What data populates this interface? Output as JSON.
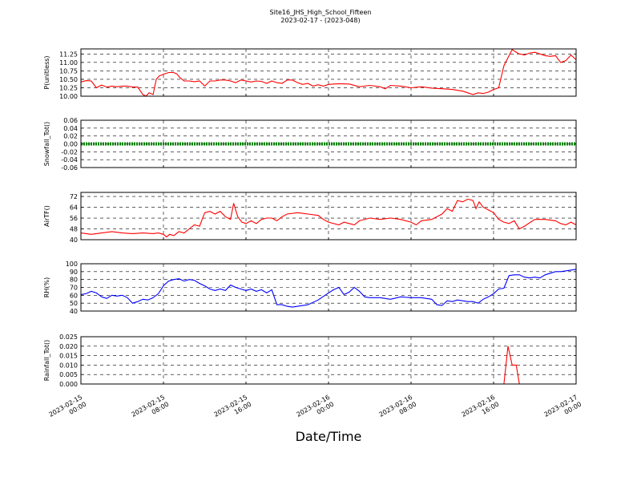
{
  "chart_data": {
    "title": "Site16_JHS_High_School_Fifteen",
    "subtitle": "2023-02-17 - (2023-048)",
    "xlabel": "Date/Time",
    "x_ticks": [
      {
        "label_date": "2023-02-15",
        "label_time": "00:00",
        "hours": 0
      },
      {
        "label_date": "2023-02-15",
        "label_time": "08:00",
        "hours": 8
      },
      {
        "label_date": "2023-02-15",
        "label_time": "16:00",
        "hours": 16
      },
      {
        "label_date": "2023-02-16",
        "label_time": "00:00",
        "hours": 24
      },
      {
        "label_date": "2023-02-16",
        "label_time": "08:00",
        "hours": 32
      },
      {
        "label_date": "2023-02-16",
        "label_time": "16:00",
        "hours": 40
      },
      {
        "label_date": "2023-02-17",
        "label_time": "00:00",
        "hours": 48
      }
    ],
    "xlim_hours": [
      0,
      48
    ],
    "grid": true,
    "panels": [
      {
        "type": "line",
        "ylabel": "P(unitless)",
        "ylim": [
          10.0,
          11.4
        ],
        "yticks": [
          "10.00",
          "10.25",
          "10.50",
          "10.75",
          "11.00",
          "11.25"
        ],
        "ytick_values": [
          10.0,
          10.25,
          10.5,
          10.75,
          11.0,
          11.25
        ],
        "color": "#ff0000",
        "points": [
          [
            0,
            10.42
          ],
          [
            0.5,
            10.46
          ],
          [
            1,
            10.45
          ],
          [
            1.5,
            10.25
          ],
          [
            2,
            10.33
          ],
          [
            2.5,
            10.27
          ],
          [
            3,
            10.3
          ],
          [
            3.5,
            10.28
          ],
          [
            4,
            10.3
          ],
          [
            4.5,
            10.3
          ],
          [
            5,
            10.27
          ],
          [
            5.5,
            10.27
          ],
          [
            6,
            10.05
          ],
          [
            6.3,
            10.0
          ],
          [
            6.6,
            10.1
          ],
          [
            7,
            10.05
          ],
          [
            7.3,
            10.5
          ],
          [
            7.6,
            10.6
          ],
          [
            8,
            10.65
          ],
          [
            8.5,
            10.7
          ],
          [
            9,
            10.7
          ],
          [
            9.3,
            10.66
          ],
          [
            9.6,
            10.55
          ],
          [
            10,
            10.45
          ],
          [
            10.5,
            10.45
          ],
          [
            11,
            10.43
          ],
          [
            11.5,
            10.45
          ],
          [
            12,
            10.3
          ],
          [
            12.5,
            10.45
          ],
          [
            13,
            10.45
          ],
          [
            13.5,
            10.48
          ],
          [
            14,
            10.48
          ],
          [
            14.5,
            10.45
          ],
          [
            15,
            10.4
          ],
          [
            15.5,
            10.48
          ],
          [
            16,
            10.45
          ],
          [
            16.5,
            10.42
          ],
          [
            17,
            10.45
          ],
          [
            17.5,
            10.44
          ],
          [
            18,
            10.38
          ],
          [
            18.5,
            10.45
          ],
          [
            19,
            10.4
          ],
          [
            19.5,
            10.38
          ],
          [
            20,
            10.48
          ],
          [
            20.5,
            10.48
          ],
          [
            21,
            10.4
          ],
          [
            21.5,
            10.35
          ],
          [
            22,
            10.38
          ],
          [
            22.5,
            10.3
          ],
          [
            23,
            10.34
          ],
          [
            23.5,
            10.3
          ],
          [
            24,
            10.35
          ],
          [
            25,
            10.37
          ],
          [
            26,
            10.36
          ],
          [
            27,
            10.28
          ],
          [
            28,
            10.32
          ],
          [
            29,
            10.28
          ],
          [
            29.5,
            10.22
          ],
          [
            30,
            10.32
          ],
          [
            31,
            10.3
          ],
          [
            32,
            10.25
          ],
          [
            33,
            10.28
          ],
          [
            34,
            10.24
          ],
          [
            35,
            10.22
          ],
          [
            36,
            10.2
          ],
          [
            37,
            10.15
          ],
          [
            37.5,
            10.1
          ],
          [
            38,
            10.05
          ],
          [
            38.5,
            10.1
          ],
          [
            39,
            10.08
          ],
          [
            39.5,
            10.12
          ],
          [
            40,
            10.2
          ],
          [
            40.5,
            10.25
          ],
          [
            41,
            10.9
          ],
          [
            41.5,
            11.2
          ],
          [
            41.8,
            11.38
          ],
          [
            42.1,
            11.32
          ],
          [
            42.5,
            11.25
          ],
          [
            43,
            11.22
          ],
          [
            43.5,
            11.28
          ],
          [
            44,
            11.3
          ],
          [
            44.5,
            11.25
          ],
          [
            45,
            11.2
          ],
          [
            45.5,
            11.18
          ],
          [
            46,
            11.2
          ],
          [
            46.5,
            11.0
          ],
          [
            47,
            11.05
          ],
          [
            47.5,
            11.22
          ],
          [
            48,
            11.08
          ]
        ]
      },
      {
        "type": "line",
        "ylabel": "Snowfall_Tot()",
        "ylim": [
          -0.06,
          0.06
        ],
        "yticks": [
          "-0.06",
          "-0.04",
          "-0.02",
          "0.00",
          "0.02",
          "0.04",
          "0.06"
        ],
        "ytick_values": [
          -0.06,
          -0.04,
          -0.02,
          0.0,
          0.02,
          0.04,
          0.06
        ],
        "color": "#008000",
        "points": [
          [
            0,
            0.0
          ],
          [
            48,
            0.0
          ]
        ]
      },
      {
        "type": "line",
        "ylabel": "AirTF()",
        "ylim": [
          40,
          75
        ],
        "yticks": [
          "40",
          "48",
          "56",
          "64",
          "72"
        ],
        "ytick_values": [
          40,
          48,
          56,
          64,
          72
        ],
        "color": "#ff0000",
        "points": [
          [
            0,
            45
          ],
          [
            1,
            44
          ],
          [
            2,
            45
          ],
          [
            3,
            46
          ],
          [
            4,
            45
          ],
          [
            5,
            44.5
          ],
          [
            6,
            45
          ],
          [
            7,
            44.5
          ],
          [
            7.5,
            45
          ],
          [
            8,
            44
          ],
          [
            8.3,
            42
          ],
          [
            8.6,
            44
          ],
          [
            9,
            43
          ],
          [
            9.5,
            46
          ],
          [
            10,
            45
          ],
          [
            10.5,
            48
          ],
          [
            11,
            51
          ],
          [
            11.5,
            50
          ],
          [
            12,
            60
          ],
          [
            12.5,
            61
          ],
          [
            13,
            59
          ],
          [
            13.5,
            61
          ],
          [
            14,
            57
          ],
          [
            14.5,
            55
          ],
          [
            14.8,
            67
          ],
          [
            15.2,
            57
          ],
          [
            15.6,
            53
          ],
          [
            16,
            52
          ],
          [
            16.5,
            54
          ],
          [
            17,
            52
          ],
          [
            17.5,
            55
          ],
          [
            18,
            56
          ],
          [
            18.5,
            56
          ],
          [
            19,
            54
          ],
          [
            19.5,
            57
          ],
          [
            20,
            59
          ],
          [
            21,
            60
          ],
          [
            22,
            59
          ],
          [
            23,
            58
          ],
          [
            23.5,
            55
          ],
          [
            24,
            53
          ],
          [
            25,
            51
          ],
          [
            25.5,
            53
          ],
          [
            26,
            52
          ],
          [
            26.5,
            51
          ],
          [
            27,
            54
          ],
          [
            28,
            56
          ],
          [
            29,
            55
          ],
          [
            30,
            56
          ],
          [
            31,
            55
          ],
          [
            32,
            53
          ],
          [
            32.5,
            51
          ],
          [
            33,
            54
          ],
          [
            34,
            55
          ],
          [
            35,
            59
          ],
          [
            35.5,
            63
          ],
          [
            36,
            61
          ],
          [
            36.5,
            69
          ],
          [
            37,
            68
          ],
          [
            37.5,
            70
          ],
          [
            38,
            69
          ],
          [
            38.3,
            63
          ],
          [
            38.6,
            68
          ],
          [
            39,
            64
          ],
          [
            39.5,
            62
          ],
          [
            40,
            60
          ],
          [
            40.5,
            55
          ],
          [
            41,
            53
          ],
          [
            41.5,
            52
          ],
          [
            42,
            54
          ],
          [
            42.5,
            48
          ],
          [
            43,
            50
          ],
          [
            44,
            55
          ],
          [
            45,
            55
          ],
          [
            46,
            54
          ],
          [
            46.5,
            52
          ],
          [
            47,
            51
          ],
          [
            47.5,
            53
          ],
          [
            48,
            51
          ]
        ]
      },
      {
        "type": "line",
        "ylabel": "RH(%)",
        "ylim": [
          40,
          100
        ],
        "yticks": [
          "40",
          "50",
          "60",
          "70",
          "80",
          "90",
          "100"
        ],
        "ytick_values": [
          40,
          50,
          60,
          70,
          80,
          90,
          100
        ],
        "color": "#0000ff",
        "points": [
          [
            0,
            61
          ],
          [
            0.5,
            62
          ],
          [
            1,
            65
          ],
          [
            1.5,
            63
          ],
          [
            2,
            58
          ],
          [
            2.5,
            56
          ],
          [
            3,
            60
          ],
          [
            3.5,
            59
          ],
          [
            4,
            60
          ],
          [
            4.5,
            57
          ],
          [
            5,
            50
          ],
          [
            5.5,
            52
          ],
          [
            6,
            55
          ],
          [
            6.5,
            54
          ],
          [
            7,
            57
          ],
          [
            7.5,
            62
          ],
          [
            8,
            72
          ],
          [
            8.5,
            78
          ],
          [
            9,
            80
          ],
          [
            9.5,
            81
          ],
          [
            10,
            78
          ],
          [
            10.5,
            80
          ],
          [
            11,
            79
          ],
          [
            11.5,
            75
          ],
          [
            12,
            72
          ],
          [
            12.5,
            68
          ],
          [
            13,
            66
          ],
          [
            13.5,
            68
          ],
          [
            14,
            66
          ],
          [
            14.5,
            73
          ],
          [
            15,
            70
          ],
          [
            15.5,
            68
          ],
          [
            16,
            66
          ],
          [
            16.5,
            68
          ],
          [
            17,
            65
          ],
          [
            17.5,
            67
          ],
          [
            18,
            63
          ],
          [
            18.5,
            67
          ],
          [
            19,
            48
          ],
          [
            19.5,
            48
          ],
          [
            20,
            46
          ],
          [
            20.5,
            45
          ],
          [
            21,
            46
          ],
          [
            22,
            48
          ],
          [
            23,
            54
          ],
          [
            24,
            63
          ],
          [
            24.5,
            67
          ],
          [
            25,
            70
          ],
          [
            25.5,
            61
          ],
          [
            26,
            64
          ],
          [
            26.5,
            70
          ],
          [
            27,
            65
          ],
          [
            27.5,
            58
          ],
          [
            28,
            57
          ],
          [
            29,
            57
          ],
          [
            30,
            55
          ],
          [
            31,
            58
          ],
          [
            32,
            57
          ],
          [
            33,
            57
          ],
          [
            34,
            55
          ],
          [
            34.5,
            48
          ],
          [
            35,
            47
          ],
          [
            35.5,
            53
          ],
          [
            36,
            52
          ],
          [
            36.5,
            54
          ],
          [
            37,
            53
          ],
          [
            37.5,
            52
          ],
          [
            38,
            52
          ],
          [
            38.5,
            50
          ],
          [
            39,
            55
          ],
          [
            39.5,
            58
          ],
          [
            40,
            62
          ],
          [
            40.5,
            68
          ],
          [
            41,
            69
          ],
          [
            41.5,
            85
          ],
          [
            42,
            86
          ],
          [
            42.5,
            86
          ],
          [
            43,
            83
          ],
          [
            43.5,
            82
          ],
          [
            44,
            83
          ],
          [
            44.5,
            82
          ],
          [
            45,
            86
          ],
          [
            45.5,
            88
          ],
          [
            46,
            90
          ],
          [
            46.5,
            90
          ],
          [
            47,
            91
          ],
          [
            47.5,
            92
          ],
          [
            48,
            93
          ]
        ]
      },
      {
        "type": "line",
        "ylabel": "Rainfall_Tot()",
        "ylim": [
          0,
          0.025
        ],
        "yticks": [
          "0.000",
          "0.005",
          "0.010",
          "0.015",
          "0.020",
          "0.025"
        ],
        "ytick_values": [
          0.0,
          0.005,
          0.01,
          0.015,
          0.02,
          0.025
        ],
        "color": "#ff0000",
        "points": [
          [
            0,
            0
          ],
          [
            41,
            0
          ],
          [
            41.4,
            0.02
          ],
          [
            41.8,
            0.01
          ],
          [
            42.2,
            0.01
          ],
          [
            42.5,
            0
          ],
          [
            48,
            0
          ]
        ]
      }
    ]
  }
}
